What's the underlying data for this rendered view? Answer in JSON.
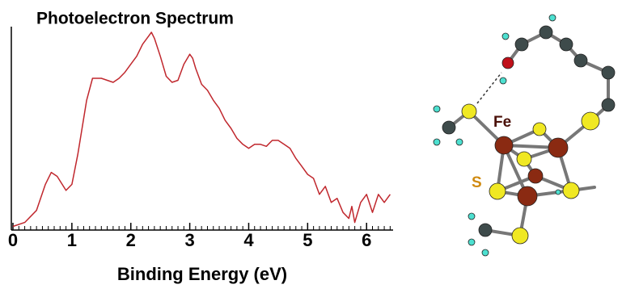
{
  "chart_data": {
    "type": "line",
    "title": "Photoelectron Spectrum",
    "x_label": "Binding Energy (eV)",
    "x": [
      0,
      0.2,
      0.4,
      0.55,
      0.65,
      0.75,
      0.9,
      1.0,
      1.1,
      1.25,
      1.35,
      1.5,
      1.6,
      1.7,
      1.8,
      1.9,
      2.0,
      2.1,
      2.2,
      2.3,
      2.35,
      2.4,
      2.5,
      2.6,
      2.7,
      2.8,
      2.9,
      3.0,
      3.05,
      3.1,
      3.2,
      3.3,
      3.4,
      3.5,
      3.6,
      3.7,
      3.8,
      3.9,
      4.0,
      4.1,
      4.2,
      4.3,
      4.4,
      4.5,
      4.6,
      4.7,
      4.8,
      4.9,
      5.0,
      5.1,
      5.2,
      5.3,
      5.4,
      5.5,
      5.6,
      5.7,
      5.75,
      5.8,
      5.9,
      6.0,
      6.1,
      6.2,
      6.3,
      6.4
    ],
    "values": [
      1,
      3,
      9,
      22,
      28,
      26,
      19,
      22,
      37,
      64,
      75,
      75,
      74,
      73,
      75,
      78,
      82,
      86,
      92,
      96,
      98,
      95,
      86,
      76,
      73,
      74,
      82,
      87,
      85,
      80,
      72,
      69,
      64,
      60,
      54,
      50,
      45,
      42,
      40,
      42,
      42,
      41,
      44,
      44,
      42,
      40,
      35,
      31,
      27,
      25,
      17,
      21,
      13,
      15,
      8,
      5,
      11,
      3,
      13,
      17,
      8,
      17,
      13,
      17
    ],
    "color": "#c0272d",
    "xlim": [
      0,
      6.45
    ],
    "ylim": [
      0,
      100
    ],
    "xticks": [
      0,
      1,
      2,
      3,
      4,
      5,
      6
    ],
    "xminorticks": [
      0.1,
      0.2,
      0.3,
      0.4,
      0.5,
      0.6,
      0.7,
      0.8,
      0.9,
      1.1,
      1.2,
      1.3,
      1.4,
      1.5,
      1.6,
      1.7,
      1.8,
      1.9,
      2.1,
      2.2,
      2.3,
      2.4,
      2.5,
      2.6,
      2.7,
      2.8,
      2.9,
      3.1,
      3.2,
      3.3,
      3.4,
      3.5,
      3.6,
      3.7,
      3.8,
      3.9,
      4.1,
      4.2,
      4.3,
      4.4,
      4.5,
      4.6,
      4.7,
      4.8,
      4.9,
      5.1,
      5.2,
      5.3,
      5.4,
      5.5,
      5.6,
      5.7,
      5.8,
      5.9,
      6.1,
      6.2,
      6.3,
      6.4
    ],
    "annotations": [
      "Fe",
      "S"
    ]
  }
}
